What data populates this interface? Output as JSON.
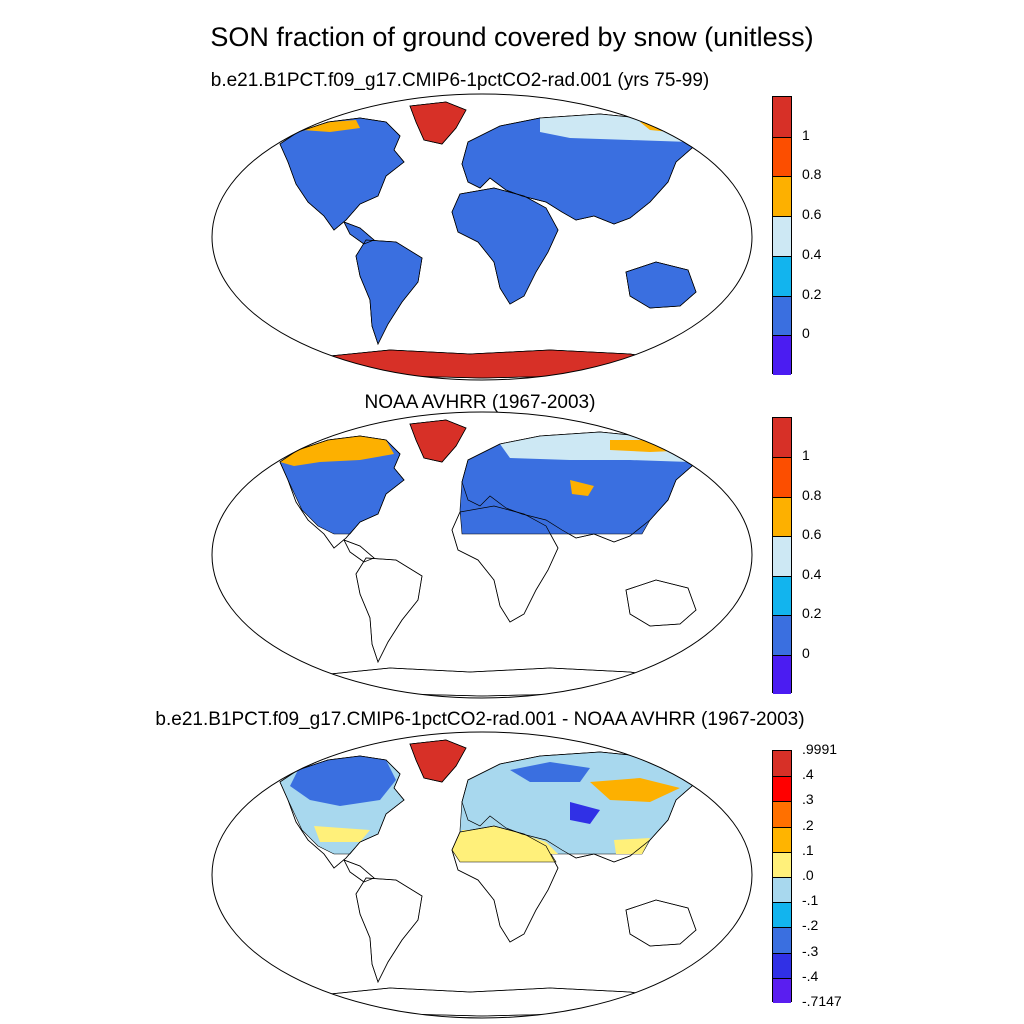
{
  "title": "SON fraction of ground covered by snow (unitless)",
  "panels": [
    {
      "title": "b.e21.B1PCT.f09_g17.CMIP6-1pctCO2-rad.001 (yrs 75-99)",
      "colorbar": {
        "labels": [
          "1",
          "0.8",
          "0.6",
          "0.4",
          "0.2",
          "0"
        ],
        "colors": [
          "#d73027",
          "#fc4e00",
          "#fdb000",
          "#cde8f4",
          "#12b4ee",
          "#3a6fe0",
          "#4b1cf2"
        ]
      }
    },
    {
      "title": "NOAA AVHRR (1967-2003)",
      "colorbar": {
        "labels": [
          "1",
          "0.8",
          "0.6",
          "0.4",
          "0.2",
          "0"
        ],
        "colors": [
          "#d73027",
          "#fc4e00",
          "#fdb000",
          "#cde8f4",
          "#12b4ee",
          "#3a6fe0",
          "#4b1cf2"
        ]
      }
    },
    {
      "title": "b.e21.B1PCT.f09_g17.CMIP6-1pctCO2-rad.001 - NOAA AVHRR (1967-2003)",
      "colorbar": {
        "labels": [
          ".9991",
          ".4",
          ".3",
          ".2",
          ".1",
          ".0",
          "-.1",
          "-.2",
          "-.3",
          "-.4",
          "-.7147"
        ],
        "colors": [
          "#d73027",
          "#ff0000",
          "#ff7000",
          "#ffb400",
          "#fff07a",
          "#a8d8ee",
          "#12b4ee",
          "#3a6fe0",
          "#3030e6",
          "#5a1ef0"
        ]
      }
    }
  ]
}
